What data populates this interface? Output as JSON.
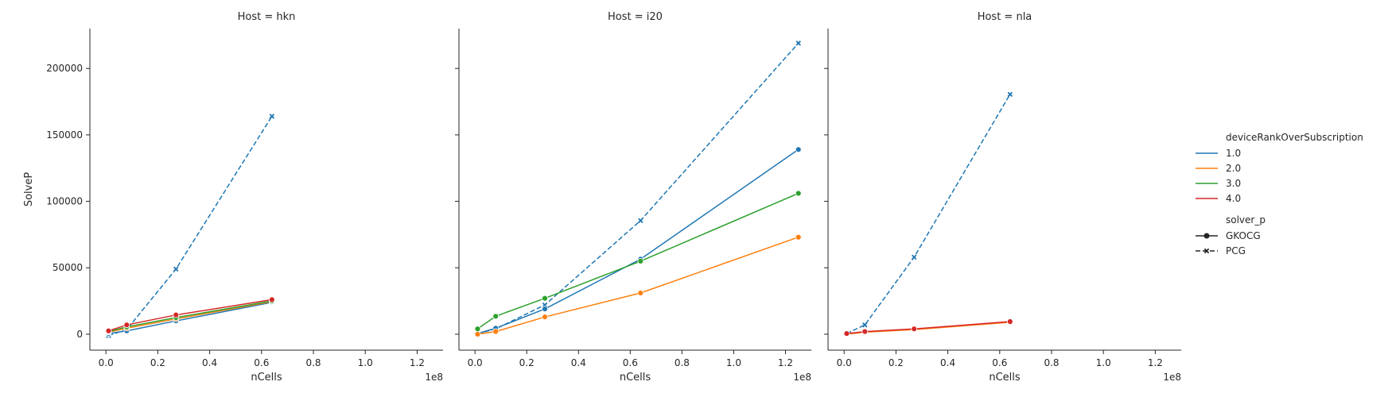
{
  "chart_data": [
    {
      "type": "line",
      "title": "Host = hkn",
      "xlabel": "nCells",
      "ylabel": "SolveP",
      "x_offset_label": "1e8",
      "xlim": [
        -0.062,
        1.3
      ],
      "ylim": [
        -12000,
        230000
      ],
      "xticks": [
        0.0,
        0.2,
        0.4,
        0.6,
        0.8,
        1.0,
        1.2
      ],
      "xtick_labels": [
        "0.0",
        "0.2",
        "0.4",
        "0.6",
        "0.8",
        "1.0",
        "1.2"
      ],
      "yticks": [
        0,
        50000,
        100000,
        150000,
        200000
      ],
      "ytick_labels": [
        "0",
        "50000",
        "100000",
        "150000",
        "200000"
      ],
      "series": [
        {
          "name": "1.0",
          "solver": "PCG",
          "color": "#1f77b4",
          "dash": true,
          "marker": "x",
          "x": [
            0.01,
            0.08,
            0.27,
            0.64
          ],
          "y": [
            -1000,
            3500,
            49000,
            164000
          ]
        },
        {
          "name": "1.0",
          "solver": "GKOCG",
          "color": "#1f77b4",
          "dash": false,
          "marker": "o",
          "x": [
            0.01,
            0.08,
            0.27,
            0.64
          ],
          "y": [
            500,
            2500,
            10000,
            24000
          ]
        },
        {
          "name": "2.0",
          "solver": "GKOCG",
          "color": "#ff7f0e",
          "dash": false,
          "marker": "o",
          "x": [
            0.01,
            0.08,
            0.27,
            0.64
          ],
          "y": [
            1500,
            4500,
            11500,
            24500
          ]
        },
        {
          "name": "3.0",
          "solver": "GKOCG",
          "color": "#2ca02c",
          "dash": false,
          "marker": "o",
          "x": [
            0.01,
            0.08,
            0.27,
            0.64
          ],
          "y": [
            2000,
            5500,
            12500,
            25000
          ]
        },
        {
          "name": "4.0",
          "solver": "GKOCG",
          "color": "#d62728",
          "dash": false,
          "marker": "o",
          "x": [
            0.01,
            0.08,
            0.27,
            0.64
          ],
          "y": [
            2500,
            7000,
            14500,
            26000
          ]
        }
      ]
    },
    {
      "type": "line",
      "title": "Host = i20",
      "xlabel": "nCells",
      "ylabel": "",
      "x_offset_label": "1e8",
      "xlim": [
        -0.062,
        1.3
      ],
      "ylim": [
        -12000,
        230000
      ],
      "xticks": [
        0.0,
        0.2,
        0.4,
        0.6,
        0.8,
        1.0,
        1.2
      ],
      "xtick_labels": [
        "0.0",
        "0.2",
        "0.4",
        "0.6",
        "0.8",
        "1.0",
        "1.2"
      ],
      "yticks": [
        0,
        50000,
        100000,
        150000,
        200000
      ],
      "ytick_labels": [],
      "series": [
        {
          "name": "1.0",
          "solver": "PCG",
          "color": "#1f77b4",
          "dash": true,
          "marker": "x",
          "x": [
            0.01,
            0.08,
            0.27,
            0.64,
            1.25
          ],
          "y": [
            500,
            4000,
            22000,
            85500,
            219000
          ]
        },
        {
          "name": "1.0",
          "solver": "GKOCG",
          "color": "#1f77b4",
          "dash": false,
          "marker": "o",
          "x": [
            0.01,
            0.08,
            0.27,
            0.64,
            1.25
          ],
          "y": [
            500,
            4500,
            19000,
            56500,
            139000
          ]
        },
        {
          "name": "2.0",
          "solver": "GKOCG",
          "color": "#ff7f0e",
          "dash": false,
          "marker": "o",
          "x": [
            0.01,
            0.08,
            0.27,
            0.64,
            1.25
          ],
          "y": [
            0,
            2000,
            13000,
            31000,
            73000
          ]
        },
        {
          "name": "3.0",
          "solver": "GKOCG",
          "color": "#2ca02c",
          "dash": false,
          "marker": "o",
          "x": [
            0.01,
            0.08,
            0.27,
            0.64,
            1.25
          ],
          "y": [
            4000,
            13500,
            27000,
            55000,
            106000
          ]
        }
      ]
    },
    {
      "type": "line",
      "title": "Host = nla",
      "xlabel": "nCells",
      "ylabel": "",
      "x_offset_label": "1e8",
      "xlim": [
        -0.062,
        1.3
      ],
      "ylim": [
        -12000,
        230000
      ],
      "xticks": [
        0.0,
        0.2,
        0.4,
        0.6,
        0.8,
        1.0,
        1.2
      ],
      "xtick_labels": [
        "0.0",
        "0.2",
        "0.4",
        "0.6",
        "0.8",
        "1.0",
        "1.2"
      ],
      "yticks": [
        0,
        50000,
        100000,
        150000,
        200000
      ],
      "ytick_labels": [],
      "series": [
        {
          "name": "1.0",
          "solver": "PCG",
          "color": "#1f77b4",
          "dash": true,
          "marker": "x",
          "x": [
            0.01,
            0.08,
            0.27,
            0.64
          ],
          "y": [
            500,
            7000,
            58000,
            180500
          ]
        },
        {
          "name": "2.0",
          "solver": "GKOCG",
          "color": "#ff7f0e",
          "dash": false,
          "marker": "o",
          "x": [
            0.01,
            0.08,
            0.27,
            0.64
          ],
          "y": [
            0,
            1500,
            3500,
            9000
          ]
        },
        {
          "name": "4.0",
          "solver": "GKOCG",
          "color": "#d62728",
          "dash": false,
          "marker": "o",
          "x": [
            0.01,
            0.08,
            0.27,
            0.64
          ],
          "y": [
            500,
            2000,
            4000,
            9500
          ]
        }
      ]
    }
  ],
  "legend": {
    "hue_title": "deviceRankOverSubscription",
    "hue_entries": [
      {
        "label": "1.0",
        "color": "#1f77b4"
      },
      {
        "label": "2.0",
        "color": "#ff7f0e"
      },
      {
        "label": "3.0",
        "color": "#2ca02c"
      },
      {
        "label": "4.0",
        "color": "#d62728"
      }
    ],
    "style_title": "solver_p",
    "style_entries": [
      {
        "label": "GKOCG",
        "marker": "o",
        "dash": false
      },
      {
        "label": "PCG",
        "marker": "x",
        "dash": true
      }
    ],
    "placement": "right"
  },
  "colors": {
    "axis": "#262626",
    "background": "#ffffff"
  }
}
